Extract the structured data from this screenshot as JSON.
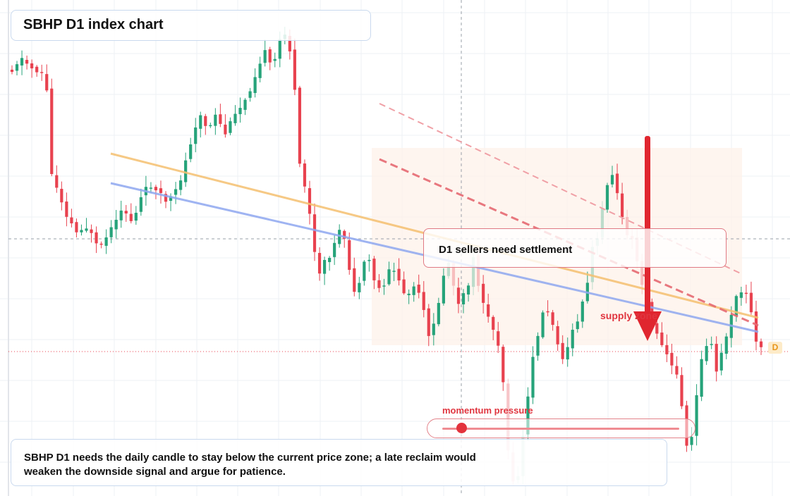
{
  "header": {
    "title": "SBHP D1 index chart"
  },
  "callout": {
    "text": "D1 sellers need settlement"
  },
  "momentum": {
    "label": "momentum pressure",
    "level": 0.08
  },
  "annotations": {
    "supply_zone": "supply zone",
    "last_bar_badge": "D"
  },
  "note": {
    "text": "SBHP D1 needs the daily candle to stay below the current price zone; a late reclaim would weaken the downside signal and argue for patience."
  },
  "colors": {
    "up": "#26a37a",
    "down": "#e8424f",
    "blue_trend": "#8fa8f0",
    "orange_trend": "#f5c070",
    "sell_arrow": "#e0262f"
  },
  "chart_data": {
    "type": "candlestick",
    "title": "SBHP D1 index chart",
    "timeframe": "D1",
    "bars_visible": 152,
    "axes_visible": false,
    "grid": true,
    "lines": [
      {
        "name": "blue_trend",
        "style": "solid"
      },
      {
        "name": "orange_trend",
        "style": "solid"
      },
      {
        "name": "downtrend_channel_upper",
        "style": "dashed"
      },
      {
        "name": "downtrend_channel_lower",
        "style": "dashed"
      }
    ],
    "reference_lines": [
      "crosshair",
      "current_price_dotted"
    ],
    "signal": "sell",
    "zone": "supply zone"
  }
}
